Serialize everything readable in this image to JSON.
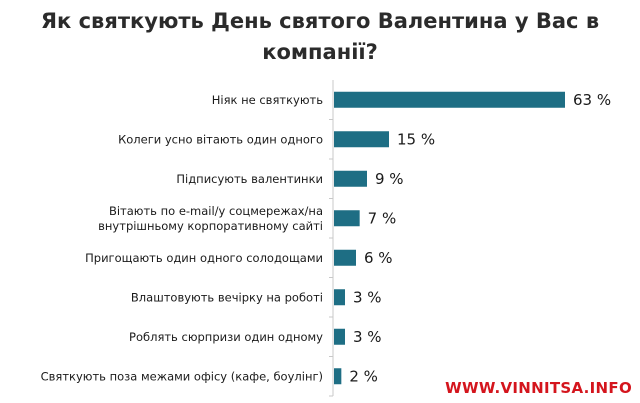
{
  "chart_data": {
    "type": "bar",
    "orientation": "horizontal",
    "title": "Як святкують День святого Валентина у Вас в компанії?",
    "categories": [
      "Ніяк не святкують",
      "Колеги усно вітають один одного",
      "Підписують валентинки",
      "Вітають по e-mail/у соцмережах/на внутрішньому корпоративному сайті",
      "Пригощають один одного солодощами",
      "Влаштовують вечірку на роботі",
      "Роблять сюрпризи один одному",
      "Святкують поза межами офісу (кафе, боулінг)"
    ],
    "category_lines": [
      [
        "Ніяк не святкують"
      ],
      [
        "Колеги усно вітають один одного"
      ],
      [
        "Підписують валентинки"
      ],
      [
        "Вітають по e-mail/у соцмережах/на",
        "внутрішньому корпоративному сайті"
      ],
      [
        "Пригощають один одного солодощами"
      ],
      [
        "Влаштовують вечірку на роботі"
      ],
      [
        "Роблять сюрпризи один одному"
      ],
      [
        "Святкують поза межами офісу (кафе, боулінг)"
      ]
    ],
    "values": [
      63,
      15,
      9,
      7,
      6,
      3,
      3,
      2
    ],
    "value_labels": [
      "63 %",
      "15 %",
      "9 %",
      "7 %",
      "6 %",
      "3 %",
      "3 %",
      "2 %"
    ],
    "unit": "%",
    "bar_color": "#1e6e84",
    "axis_color": "#c8c8c8",
    "grid": false,
    "legend": "none"
  },
  "watermark": "WWW.VINNITSA.INFO"
}
